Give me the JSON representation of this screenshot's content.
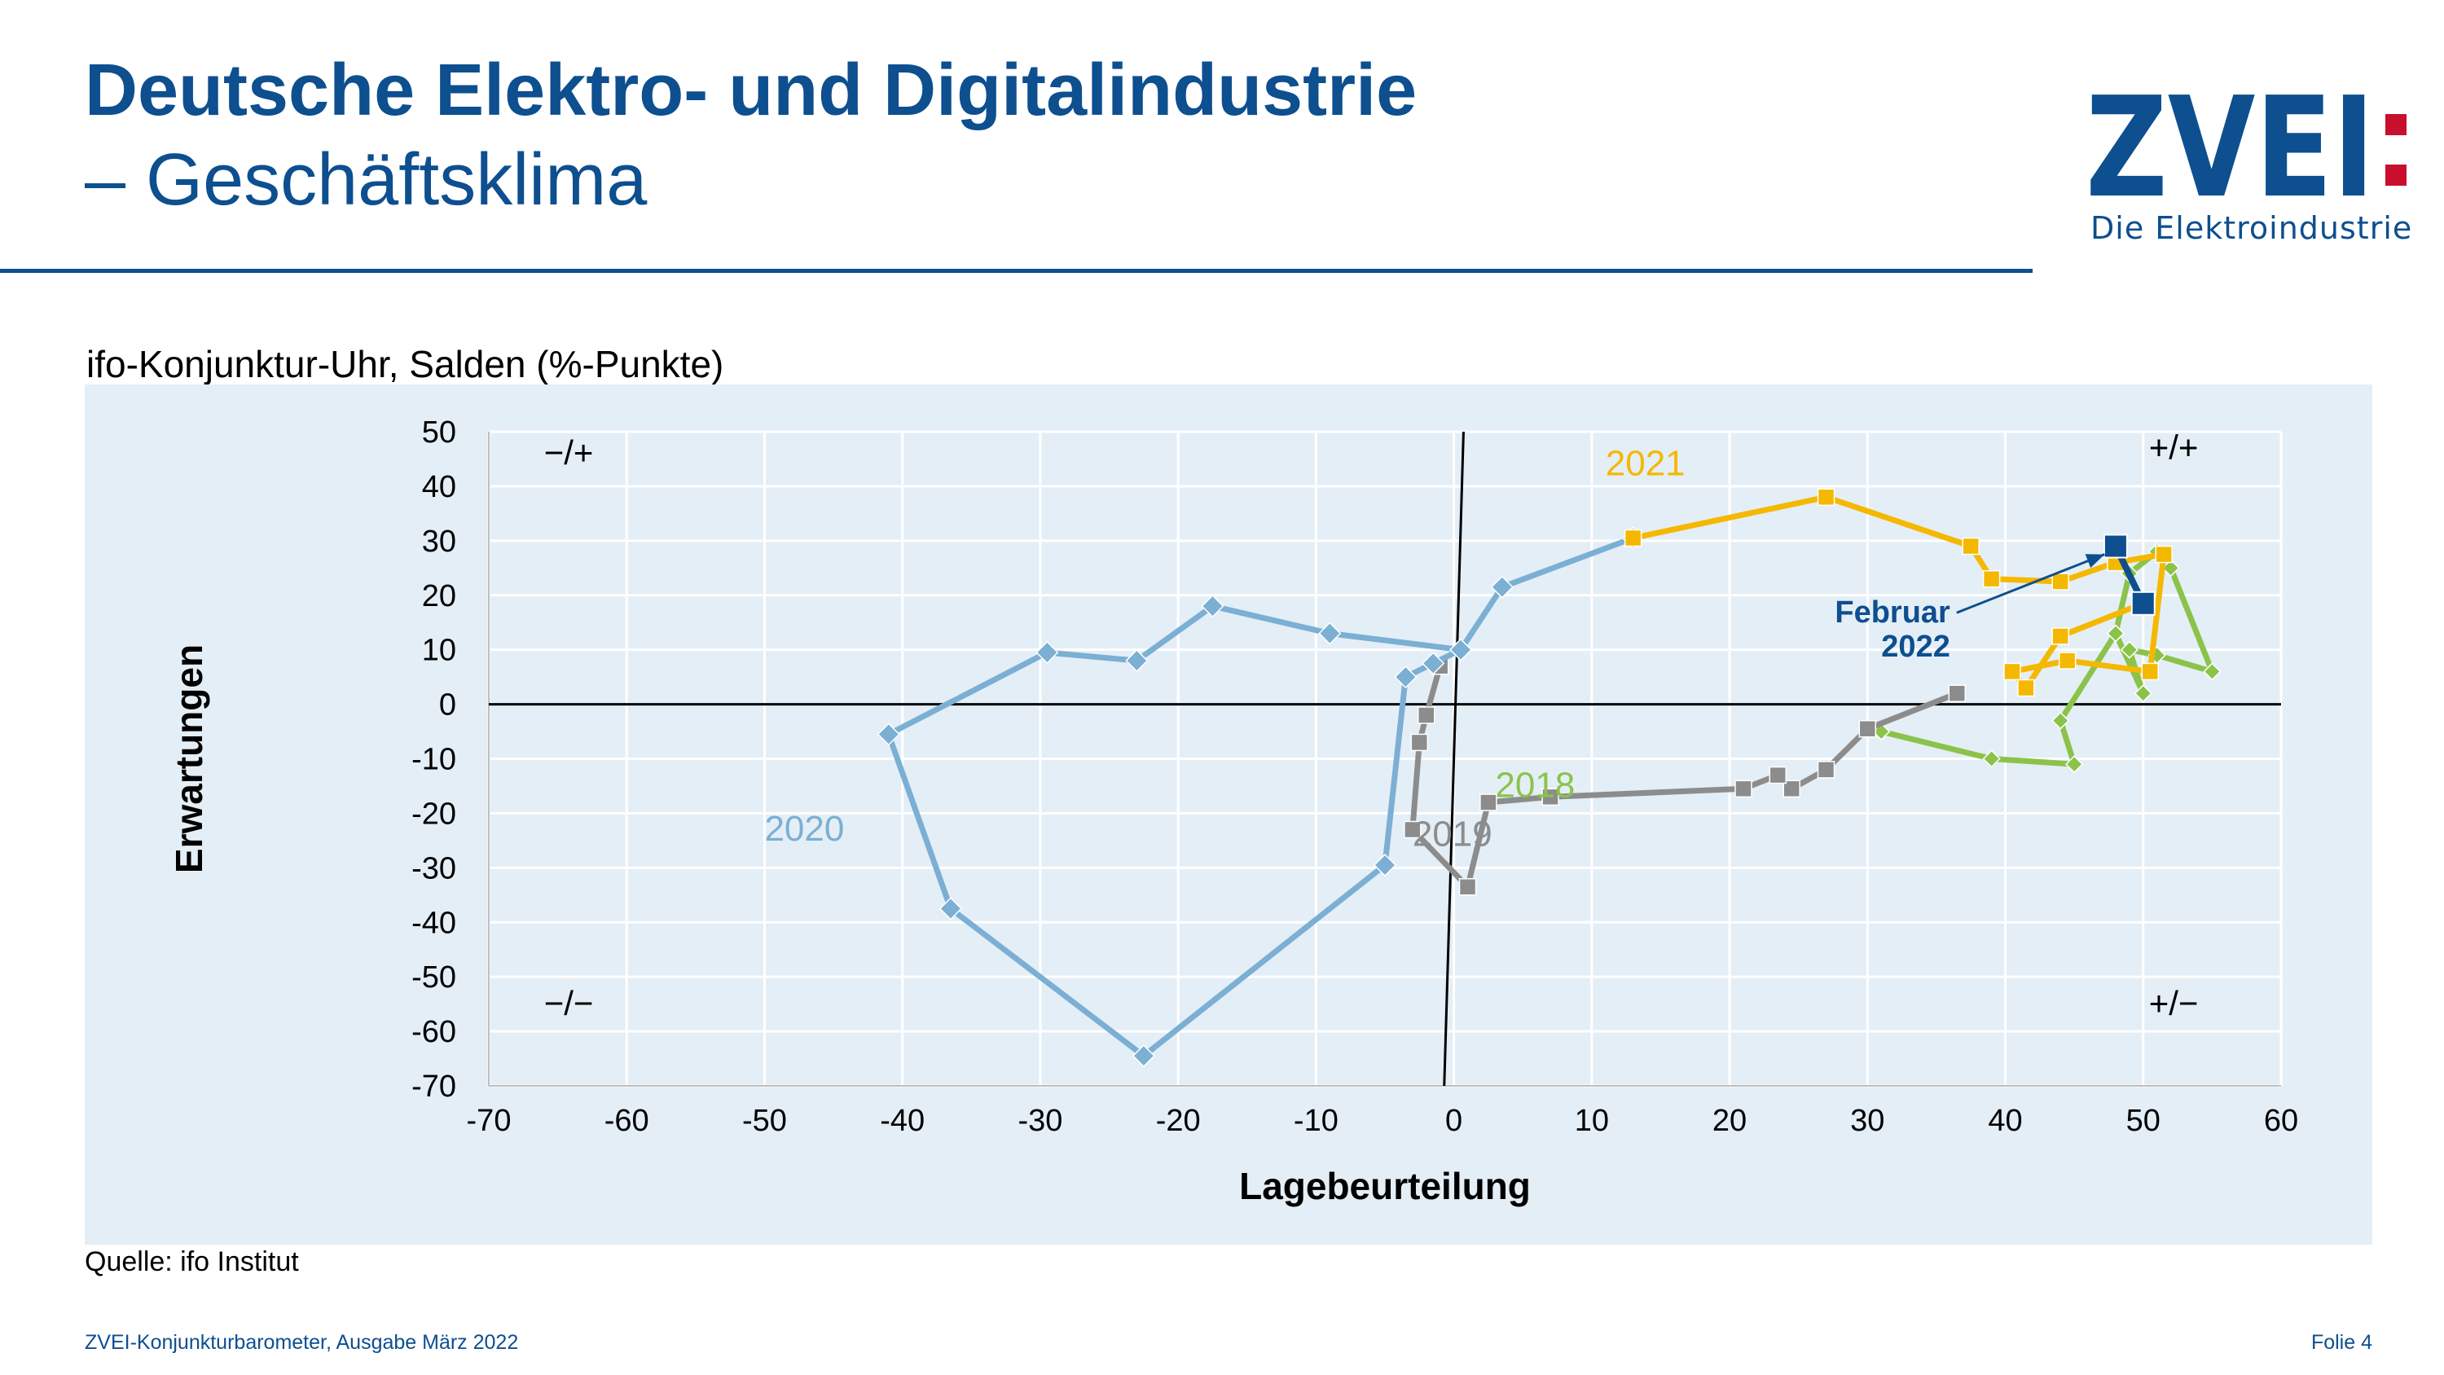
{
  "header": {
    "title_line1": "Deutsche Elektro- und Digitalindustrie",
    "title_line2": "– Geschäftsklima"
  },
  "logo": {
    "wordmark": "ZVEI",
    "tagline": "Die Elektroindustrie",
    "colors": {
      "primary": "#0d4f8f",
      "accent": "#c8102e"
    }
  },
  "chart_heading": "ifo-Konjunktur-Uhr, Salden (%-Punkte)",
  "source": "Quelle: ifo Institut",
  "footer": {
    "left": "ZVEI-Konjunkturbarometer, Ausgabe März 2022",
    "right": "Folie 4"
  },
  "chart_data": {
    "type": "line",
    "xlabel": "Lagebeurteilung",
    "ylabel": "Erwartungen",
    "xlim": [
      -70,
      60
    ],
    "ylim": [
      -70,
      50
    ],
    "xticks": [
      -70,
      -60,
      -50,
      -40,
      -30,
      -20,
      -10,
      0,
      10,
      20,
      30,
      40,
      50,
      60
    ],
    "yticks": [
      -70,
      -60,
      -50,
      -40,
      -30,
      -20,
      -10,
      0,
      10,
      20,
      30,
      40,
      50
    ],
    "grid": true,
    "quadrants": [
      {
        "label": "−/+",
        "x": -66,
        "y": 44,
        "anchor": "start"
      },
      {
        "label": "+/+",
        "x": 54,
        "y": 45,
        "anchor": "end"
      },
      {
        "label": "−/−",
        "x": -66,
        "y": -57,
        "anchor": "start"
      },
      {
        "label": "+/−",
        "x": 54,
        "y": -57,
        "anchor": "end"
      }
    ],
    "series": [
      {
        "name": "2018",
        "color": "#8bc34a",
        "marker": "diamond-small",
        "label_at": [
          3,
          -17
        ],
        "points": [
          [
            48,
            13
          ],
          [
            49,
            24
          ],
          [
            51,
            28
          ],
          [
            52,
            25
          ],
          [
            55,
            6
          ],
          [
            51,
            9
          ],
          [
            49,
            10
          ],
          [
            50,
            2
          ],
          [
            48,
            13
          ],
          [
            44,
            -3
          ],
          [
            45,
            -11
          ],
          [
            39,
            -10
          ],
          [
            31,
            -5
          ]
        ]
      },
      {
        "name": "2019",
        "color": "#8c8c8c",
        "marker": "square",
        "label_at": [
          -3,
          -26
        ],
        "points": [
          [
            36.5,
            2
          ],
          [
            30,
            -4.5
          ],
          [
            27,
            -12
          ],
          [
            24.5,
            -15.5
          ],
          [
            23.5,
            -13
          ],
          [
            21,
            -15.5
          ],
          [
            7,
            -17
          ],
          [
            2.5,
            -18
          ],
          [
            1,
            -33.5
          ],
          [
            -3,
            -23
          ],
          [
            -2.5,
            -7
          ],
          [
            -2,
            -2
          ],
          [
            -1,
            7
          ]
        ]
      },
      {
        "name": "2020",
        "color": "#7bafd4",
        "marker": "diamond",
        "label_at": [
          -50,
          -25
        ],
        "points": [
          [
            0.5,
            10
          ],
          [
            -9,
            13
          ],
          [
            -17.5,
            18
          ],
          [
            -23,
            8
          ],
          [
            -29.5,
            9.5
          ],
          [
            -41,
            -5.5
          ],
          [
            -36.5,
            -37.5
          ],
          [
            -22.5,
            -64.5
          ],
          [
            -5,
            -29.5
          ],
          [
            -3.5,
            5
          ],
          [
            -1.5,
            7.5
          ],
          [
            0.5,
            10
          ],
          [
            3.5,
            21.5
          ],
          [
            13,
            30.5
          ]
        ]
      },
      {
        "name": "2021",
        "color": "#f5b800",
        "marker": "square",
        "label_at": [
          11,
          42
        ],
        "points": [
          [
            13,
            30.5
          ],
          [
            27,
            38
          ],
          [
            37.5,
            29
          ],
          [
            39,
            23
          ],
          [
            44,
            22.5
          ],
          [
            48,
            26
          ],
          [
            51.5,
            27.5
          ],
          [
            50.5,
            6
          ],
          [
            44.5,
            8
          ],
          [
            40.5,
            6
          ],
          [
            41.5,
            3
          ],
          [
            44,
            12.5
          ],
          [
            50,
            18.5
          ]
        ]
      },
      {
        "name": "2022",
        "color": "#0d4f8f",
        "marker": "square-large",
        "points": [
          [
            50,
            18.5
          ],
          [
            48,
            29
          ]
        ]
      }
    ],
    "annotation": {
      "line1": "Februar",
      "line2": "2022",
      "text_at": [
        36,
        15
      ],
      "arrow_to": [
        47.2,
        27.5
      ],
      "color": "#0d4f8f"
    }
  }
}
